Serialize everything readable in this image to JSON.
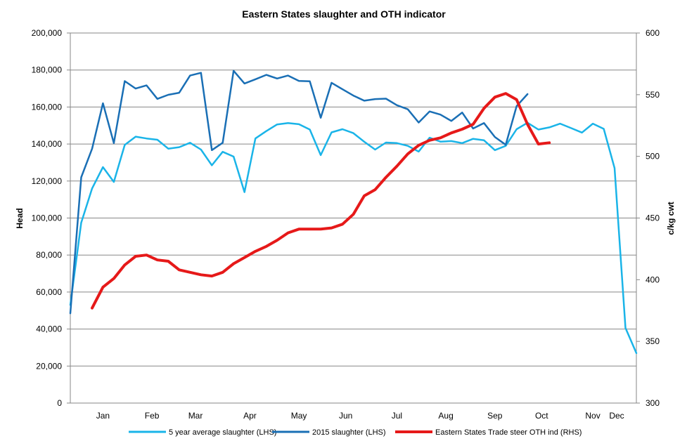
{
  "chart_data": {
    "type": "line",
    "title": "Eastern States slaughter and OTH indicator",
    "ylabel_left": "Head",
    "ylabel_right": "c/kg cwt",
    "ylim_left": [
      0,
      200000
    ],
    "ylim_right": [
      300,
      600
    ],
    "yticks_left": [
      "0",
      "20,000",
      "40,000",
      "60,000",
      "80,000",
      "100,000",
      "120,000",
      "140,000",
      "160,000",
      "180,000",
      "200,000"
    ],
    "yticks_right": [
      "300",
      "350",
      "400",
      "450",
      "500",
      "550",
      "600"
    ],
    "yticks_left_values": [
      0,
      20000,
      40000,
      60000,
      80000,
      100000,
      120000,
      140000,
      160000,
      180000,
      200000
    ],
    "yticks_right_values": [
      300,
      350,
      400,
      450,
      500,
      550,
      600
    ],
    "x_weeks": 52,
    "xticks": [
      {
        "label": "Jan",
        "week": 3
      },
      {
        "label": "Feb",
        "week": 7.5
      },
      {
        "label": "Mar",
        "week": 11.5
      },
      {
        "label": "Apr",
        "week": 16.5
      },
      {
        "label": "May",
        "week": 21
      },
      {
        "label": "Jun",
        "week": 25.3
      },
      {
        "label": "Jul",
        "week": 30
      },
      {
        "label": "Aug",
        "week": 34.5
      },
      {
        "label": "Sep",
        "week": 39
      },
      {
        "label": "Oct",
        "week": 43.3
      },
      {
        "label": "Nov",
        "week": 48
      },
      {
        "label": "Dec",
        "week": 52
      }
    ],
    "series": [
      {
        "name": "5 year average slaughter (LHS)",
        "axis": "left",
        "color": "#1ab4e8",
        "start_week": 0,
        "values": [
          53000,
          97500,
          116000,
          127500,
          119500,
          139500,
          144000,
          143000,
          142300,
          137500,
          138300,
          140700,
          137000,
          128500,
          135800,
          133200,
          114000,
          143000,
          147000,
          150600,
          151300,
          150700,
          147800,
          134000,
          146300,
          148000,
          145900,
          141200,
          137000,
          140800,
          140500,
          139000,
          135900,
          143400,
          141300,
          141600,
          140500,
          142800,
          142000,
          136700,
          139000,
          148000,
          151500,
          147800,
          149000,
          151000,
          148600,
          146200,
          151000,
          148200,
          127000,
          40600,
          27000
        ]
      },
      {
        "name": "2015 slaughter (LHS)",
        "axis": "left",
        "color": "#1a6fb5",
        "start_week": 0,
        "values": [
          48500,
          122000,
          137500,
          162000,
          140500,
          174000,
          170000,
          171700,
          164400,
          166600,
          167700,
          177000,
          178500,
          136700,
          140700,
          179600,
          172700,
          175000,
          177400,
          175400,
          177000,
          174100,
          173900,
          154200,
          173100,
          169600,
          166200,
          163400,
          164300,
          164500,
          161000,
          158800,
          151600,
          157600,
          155900,
          152500,
          157000,
          148400,
          151300,
          143800,
          139600,
          160500,
          167000
        ]
      },
      {
        "name": "Eastern States Trade steer OTH ind (RHS)",
        "axis": "right",
        "color": "#e61919",
        "start_week": 2,
        "values": [
          377,
          394,
          401,
          412,
          419,
          420,
          416,
          415,
          408,
          406,
          404,
          403,
          406,
          413,
          418,
          423,
          427,
          432,
          438,
          441,
          441,
          441,
          442,
          445,
          453,
          468,
          473,
          483,
          492,
          502,
          509,
          513,
          515,
          519,
          522,
          526,
          539,
          548,
          551,
          546,
          526,
          510,
          511
        ]
      }
    ],
    "legend": "bottom"
  }
}
